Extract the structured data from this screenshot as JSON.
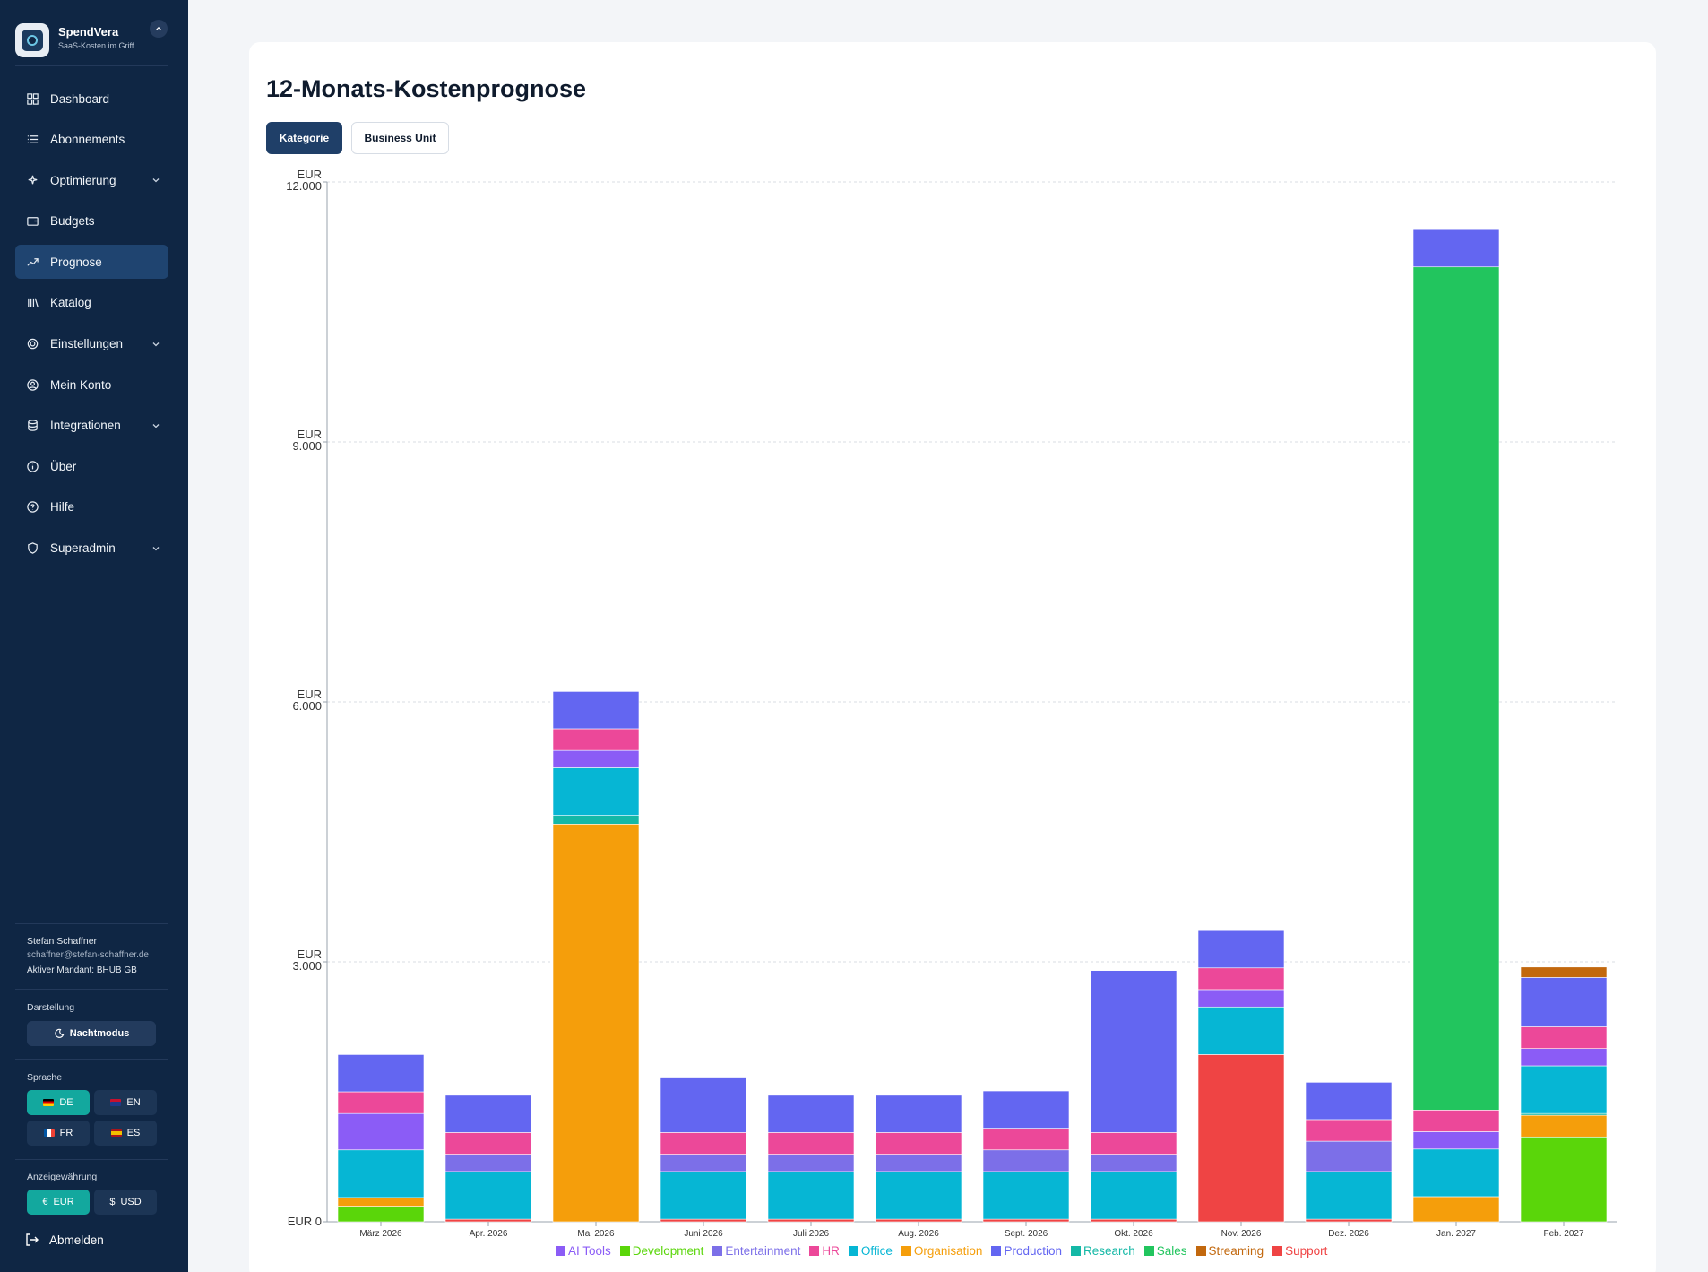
{
  "app": {
    "name": "SpendVera",
    "tagline": "SaaS-Kosten im Griff"
  },
  "sidebar": {
    "items": [
      {
        "label": "Dashboard",
        "icon": "grid-icon"
      },
      {
        "label": "Abonnements",
        "icon": "list-icon"
      },
      {
        "label": "Optimierung",
        "icon": "sparkles-icon",
        "expandable": true
      },
      {
        "label": "Budgets",
        "icon": "wallet-icon"
      },
      {
        "label": "Prognose",
        "icon": "trending-up-icon",
        "active": true
      },
      {
        "label": "Katalog",
        "icon": "library-icon"
      },
      {
        "label": "Einstellungen",
        "icon": "gear-icon",
        "expandable": true
      },
      {
        "label": "Mein Konto",
        "icon": "user-circle-icon"
      },
      {
        "label": "Integrationen",
        "icon": "database-icon",
        "expandable": true
      },
      {
        "label": "Über",
        "icon": "info-icon"
      },
      {
        "label": "Hilfe",
        "icon": "help-icon"
      },
      {
        "label": "Superadmin",
        "icon": "shield-icon",
        "expandable": true
      }
    ]
  },
  "user": {
    "name": "Stefan Schaffner",
    "email": "schaffner@stefan-schaffner.de",
    "tenant": "Aktiver Mandant: BHUB GB"
  },
  "appearance": {
    "label": "Darstellung",
    "dark_mode": "Nachtmodus"
  },
  "language": {
    "label": "Sprache",
    "options": [
      "DE",
      "EN",
      "FR",
      "ES"
    ],
    "selected": "DE"
  },
  "currency": {
    "label": "Anzeigewährung",
    "options": [
      "EUR",
      "USD"
    ],
    "selected": "EUR"
  },
  "logout": "Abmelden",
  "page": {
    "title": "12-Monats-Kostenprognose",
    "tabs": [
      "Kategorie",
      "Business Unit"
    ],
    "active_tab": "Kategorie"
  },
  "colors": {
    "AI Tools": "#8b5cf6",
    "Development": "#5ad60a",
    "Entertainment": "#7c6fe8",
    "HR": "#ec4899",
    "Office": "#06b6d4",
    "Organisation": "#f59e0b",
    "Production": "#6366f1",
    "Research": "#14b8a6",
    "Sales": "#22c55e",
    "Streaming": "#c2680e",
    "Support": "#ef4444"
  },
  "chart_data": {
    "type": "bar",
    "stacked": true,
    "title": "12-Monats-Kostenprognose",
    "ylim": [
      0,
      12000
    ],
    "yticks": [
      {
        "value": 0,
        "label": "EUR 0"
      },
      {
        "value": 3000,
        "label": "EUR 3.000"
      },
      {
        "value": 6000,
        "label": "EUR 6.000"
      },
      {
        "value": 9000,
        "label": "EUR 9.000"
      },
      {
        "value": 12000,
        "label": "EUR 12.000"
      }
    ],
    "categories": [
      "März 2026",
      "Apr. 2026",
      "Mai 2026",
      "Juni 2026",
      "Juli 2026",
      "Aug. 2026",
      "Sept. 2026",
      "Okt. 2026",
      "Nov. 2026",
      "Dez. 2026",
      "Jan. 2027",
      "Feb. 2027"
    ],
    "series": [
      {
        "name": "Support",
        "values": [
          0,
          30,
          0,
          30,
          30,
          30,
          30,
          30,
          1930,
          30,
          0,
          0
        ]
      },
      {
        "name": "Development",
        "values": [
          180,
          0,
          0,
          0,
          0,
          0,
          0,
          0,
          0,
          0,
          0,
          980
        ]
      },
      {
        "name": "Streaming",
        "values": [
          0,
          0,
          0,
          0,
          0,
          0,
          0,
          0,
          0,
          0,
          0,
          0
        ]
      },
      {
        "name": "Organisation",
        "values": [
          100,
          0,
          4590,
          0,
          0,
          0,
          0,
          0,
          0,
          0,
          290,
          250
        ]
      },
      {
        "name": "Research",
        "values": [
          0,
          0,
          100,
          0,
          0,
          0,
          0,
          0,
          0,
          0,
          0,
          20
        ]
      },
      {
        "name": "Office",
        "values": [
          550,
          550,
          550,
          550,
          550,
          550,
          550,
          550,
          550,
          550,
          550,
          550
        ]
      },
      {
        "name": "Entertainment",
        "values": [
          0,
          200,
          0,
          200,
          200,
          200,
          250,
          200,
          0,
          350,
          0,
          0
        ]
      },
      {
        "name": "AI Tools",
        "values": [
          420,
          0,
          200,
          0,
          0,
          0,
          0,
          0,
          200,
          0,
          200,
          200
        ]
      },
      {
        "name": "HR",
        "values": [
          250,
          250,
          250,
          250,
          250,
          250,
          250,
          250,
          250,
          250,
          250,
          250
        ]
      },
      {
        "name": "Sales",
        "values": [
          0,
          0,
          0,
          0,
          0,
          0,
          0,
          0,
          0,
          0,
          9730,
          0
        ]
      },
      {
        "name": "Production",
        "values": [
          430,
          430,
          430,
          630,
          430,
          430,
          430,
          1870,
          430,
          430,
          430,
          570
        ]
      },
      {
        "name": "Streaming",
        "values": [
          0,
          0,
          0,
          0,
          0,
          0,
          0,
          0,
          0,
          0,
          0,
          120
        ]
      }
    ],
    "legend": [
      "AI Tools",
      "Development",
      "Entertainment",
      "HR",
      "Office",
      "Organisation",
      "Production",
      "Research",
      "Sales",
      "Streaming",
      "Support"
    ],
    "legend_position": "bottom"
  }
}
